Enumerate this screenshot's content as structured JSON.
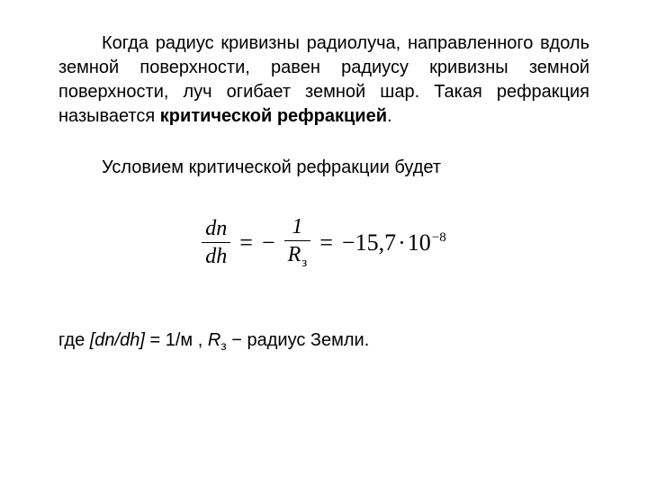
{
  "para1_a": "Когда радиус кривизны радиолуча, направленного вдоль земной поверхности, равен радиусу кривизны земной поверхности, луч огибает земной шар. Такая рефракция называется ",
  "para1_b": "критической рефракцией",
  "para1_c": ".",
  "para2": "Условием критической рефракции будет",
  "formula": {
    "frac1_num": "dn",
    "frac1_den": "dh",
    "eq1": "=",
    "minus1": "−",
    "frac2_num": "1",
    "frac2_den_R": "R",
    "frac2_den_sub": "з",
    "eq2": "=",
    "minus2": "−",
    "val_a": "15,7",
    "cdot": "·",
    "val_b": "10",
    "exp": "−8"
  },
  "para3_a": "где ",
  "para3_b": "[dn/dh]",
  "para3_c": " = 1/м ,  ",
  "para3_d": "R",
  "para3_sub": "з",
  "para3_e": "  −  радиус Земли."
}
